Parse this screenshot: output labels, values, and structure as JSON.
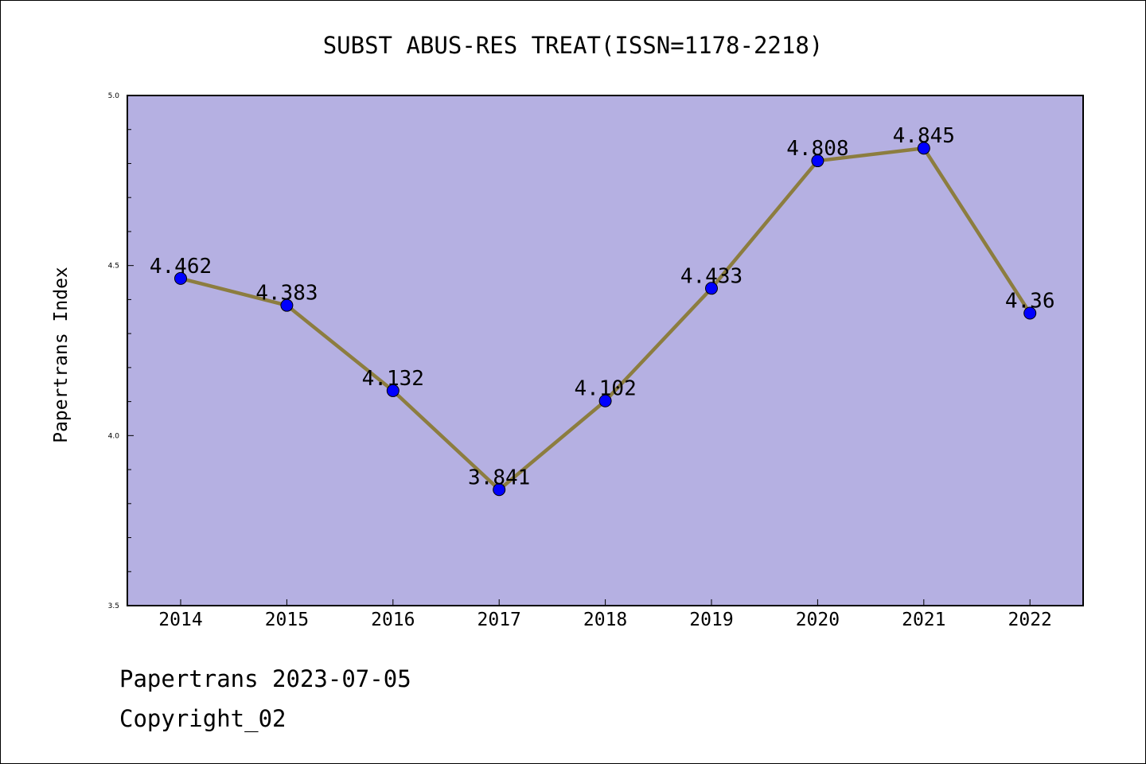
{
  "chart_data": {
    "type": "line",
    "title": "SUBST ABUS-RES TREAT(ISSN=1178-2218)",
    "ylabel": "Papertrans Index",
    "xlabel": "",
    "categories": [
      "2014",
      "2015",
      "2016",
      "2017",
      "2018",
      "2019",
      "2020",
      "2021",
      "2022"
    ],
    "series": [
      {
        "values": [
          4.462,
          4.383,
          4.132,
          3.841,
          4.102,
          4.433,
          4.808,
          4.845,
          4.36
        ],
        "labels": [
          "4.462",
          "4.383",
          "4.132",
          "3.841",
          "4.102",
          "4.433",
          "4.808",
          "4.845",
          "4.36"
        ],
        "line_color": "#8c7d3f",
        "marker_color": "#0000ff"
      }
    ],
    "ylim": [
      3.5,
      5.0
    ],
    "yticks": [
      "3.5",
      "4.0",
      "4.5",
      "5.0"
    ],
    "grid": false,
    "plot_background": "#b5b0e2"
  },
  "footer": {
    "line1": "Papertrans 2023-07-05",
    "line2": "Copyright_02"
  }
}
